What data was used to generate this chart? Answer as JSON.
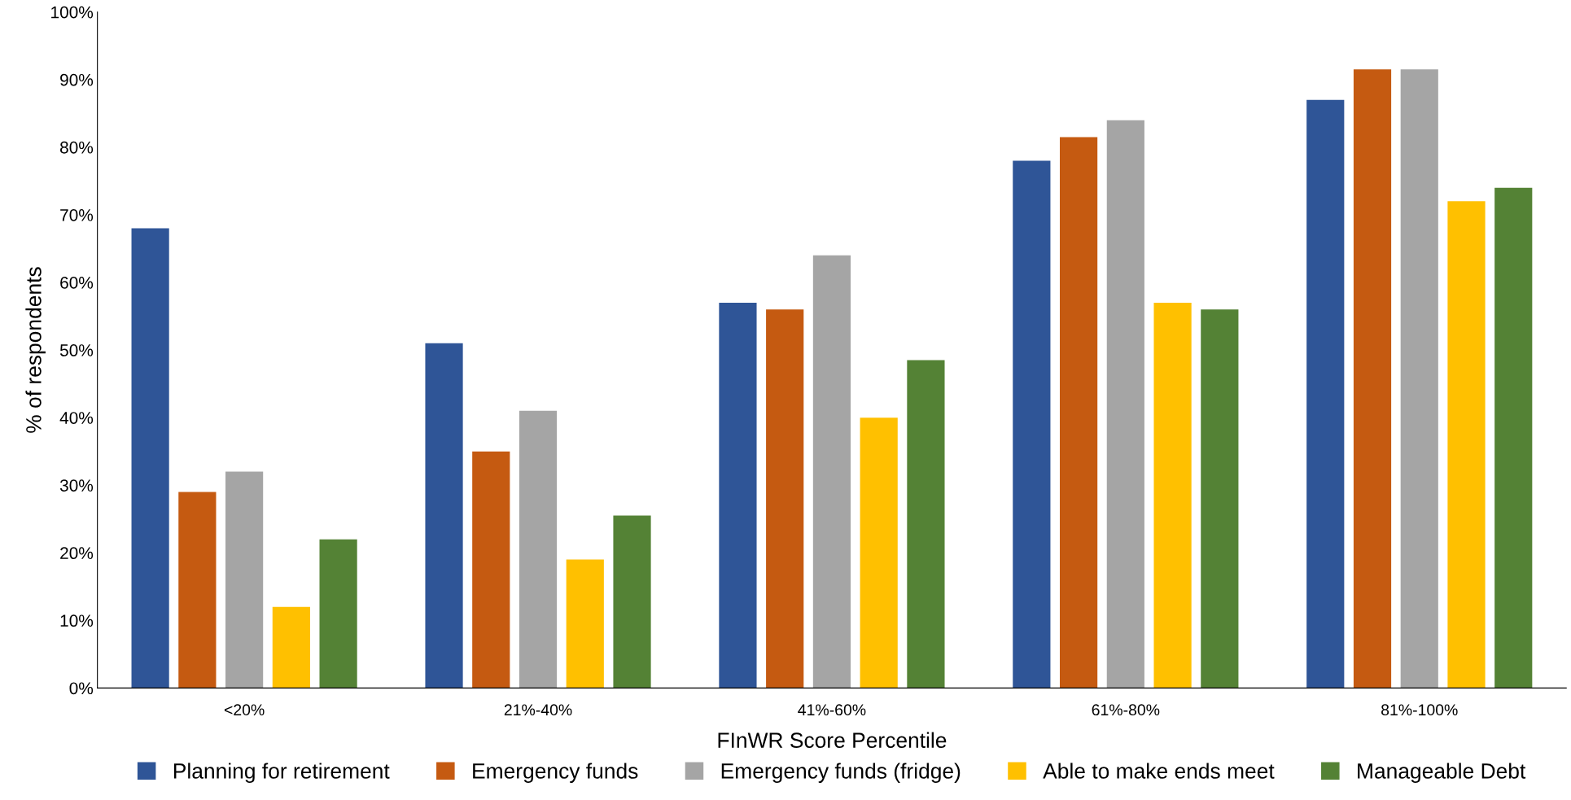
{
  "chart_data": {
    "type": "bar",
    "xlabel": "FInWR Score Percentile",
    "ylabel": "% of respondents",
    "categories": [
      "<20%",
      "21%-40%",
      "41%-60%",
      "61%-80%",
      "81%-100%"
    ],
    "series": [
      {
        "name": "Planning for retirement",
        "color": "#2f5597",
        "values": [
          68,
          51,
          57,
          78,
          87
        ]
      },
      {
        "name": "Emergency funds",
        "color": "#c55a11",
        "values": [
          29,
          35,
          56,
          81.5,
          91.5
        ]
      },
      {
        "name": "Emergency funds (fridge)",
        "color": "#a5a5a5",
        "values": [
          32,
          41,
          64,
          84,
          91.5
        ]
      },
      {
        "name": "Able to make ends meet",
        "color": "#ffc000",
        "values": [
          12,
          19,
          40,
          57,
          72
        ]
      },
      {
        "name": "Manageable Debt",
        "color": "#548235",
        "values": [
          22,
          25.5,
          48.5,
          56,
          74
        ]
      }
    ],
    "ylim": [
      0,
      100
    ],
    "yticks": [
      {
        "value": 0,
        "label": "0%"
      },
      {
        "value": 10,
        "label": "10%"
      },
      {
        "value": 20,
        "label": "20%"
      },
      {
        "value": 30,
        "label": "30%"
      },
      {
        "value": 40,
        "label": "40%"
      },
      {
        "value": 50,
        "label": "50%"
      },
      {
        "value": 60,
        "label": "60%"
      },
      {
        "value": 70,
        "label": "70%"
      },
      {
        "value": 80,
        "label": "80%"
      },
      {
        "value": 90,
        "label": "90%"
      },
      {
        "value": 100,
        "label": "100%"
      }
    ],
    "grid": false,
    "legend": "bottom"
  }
}
